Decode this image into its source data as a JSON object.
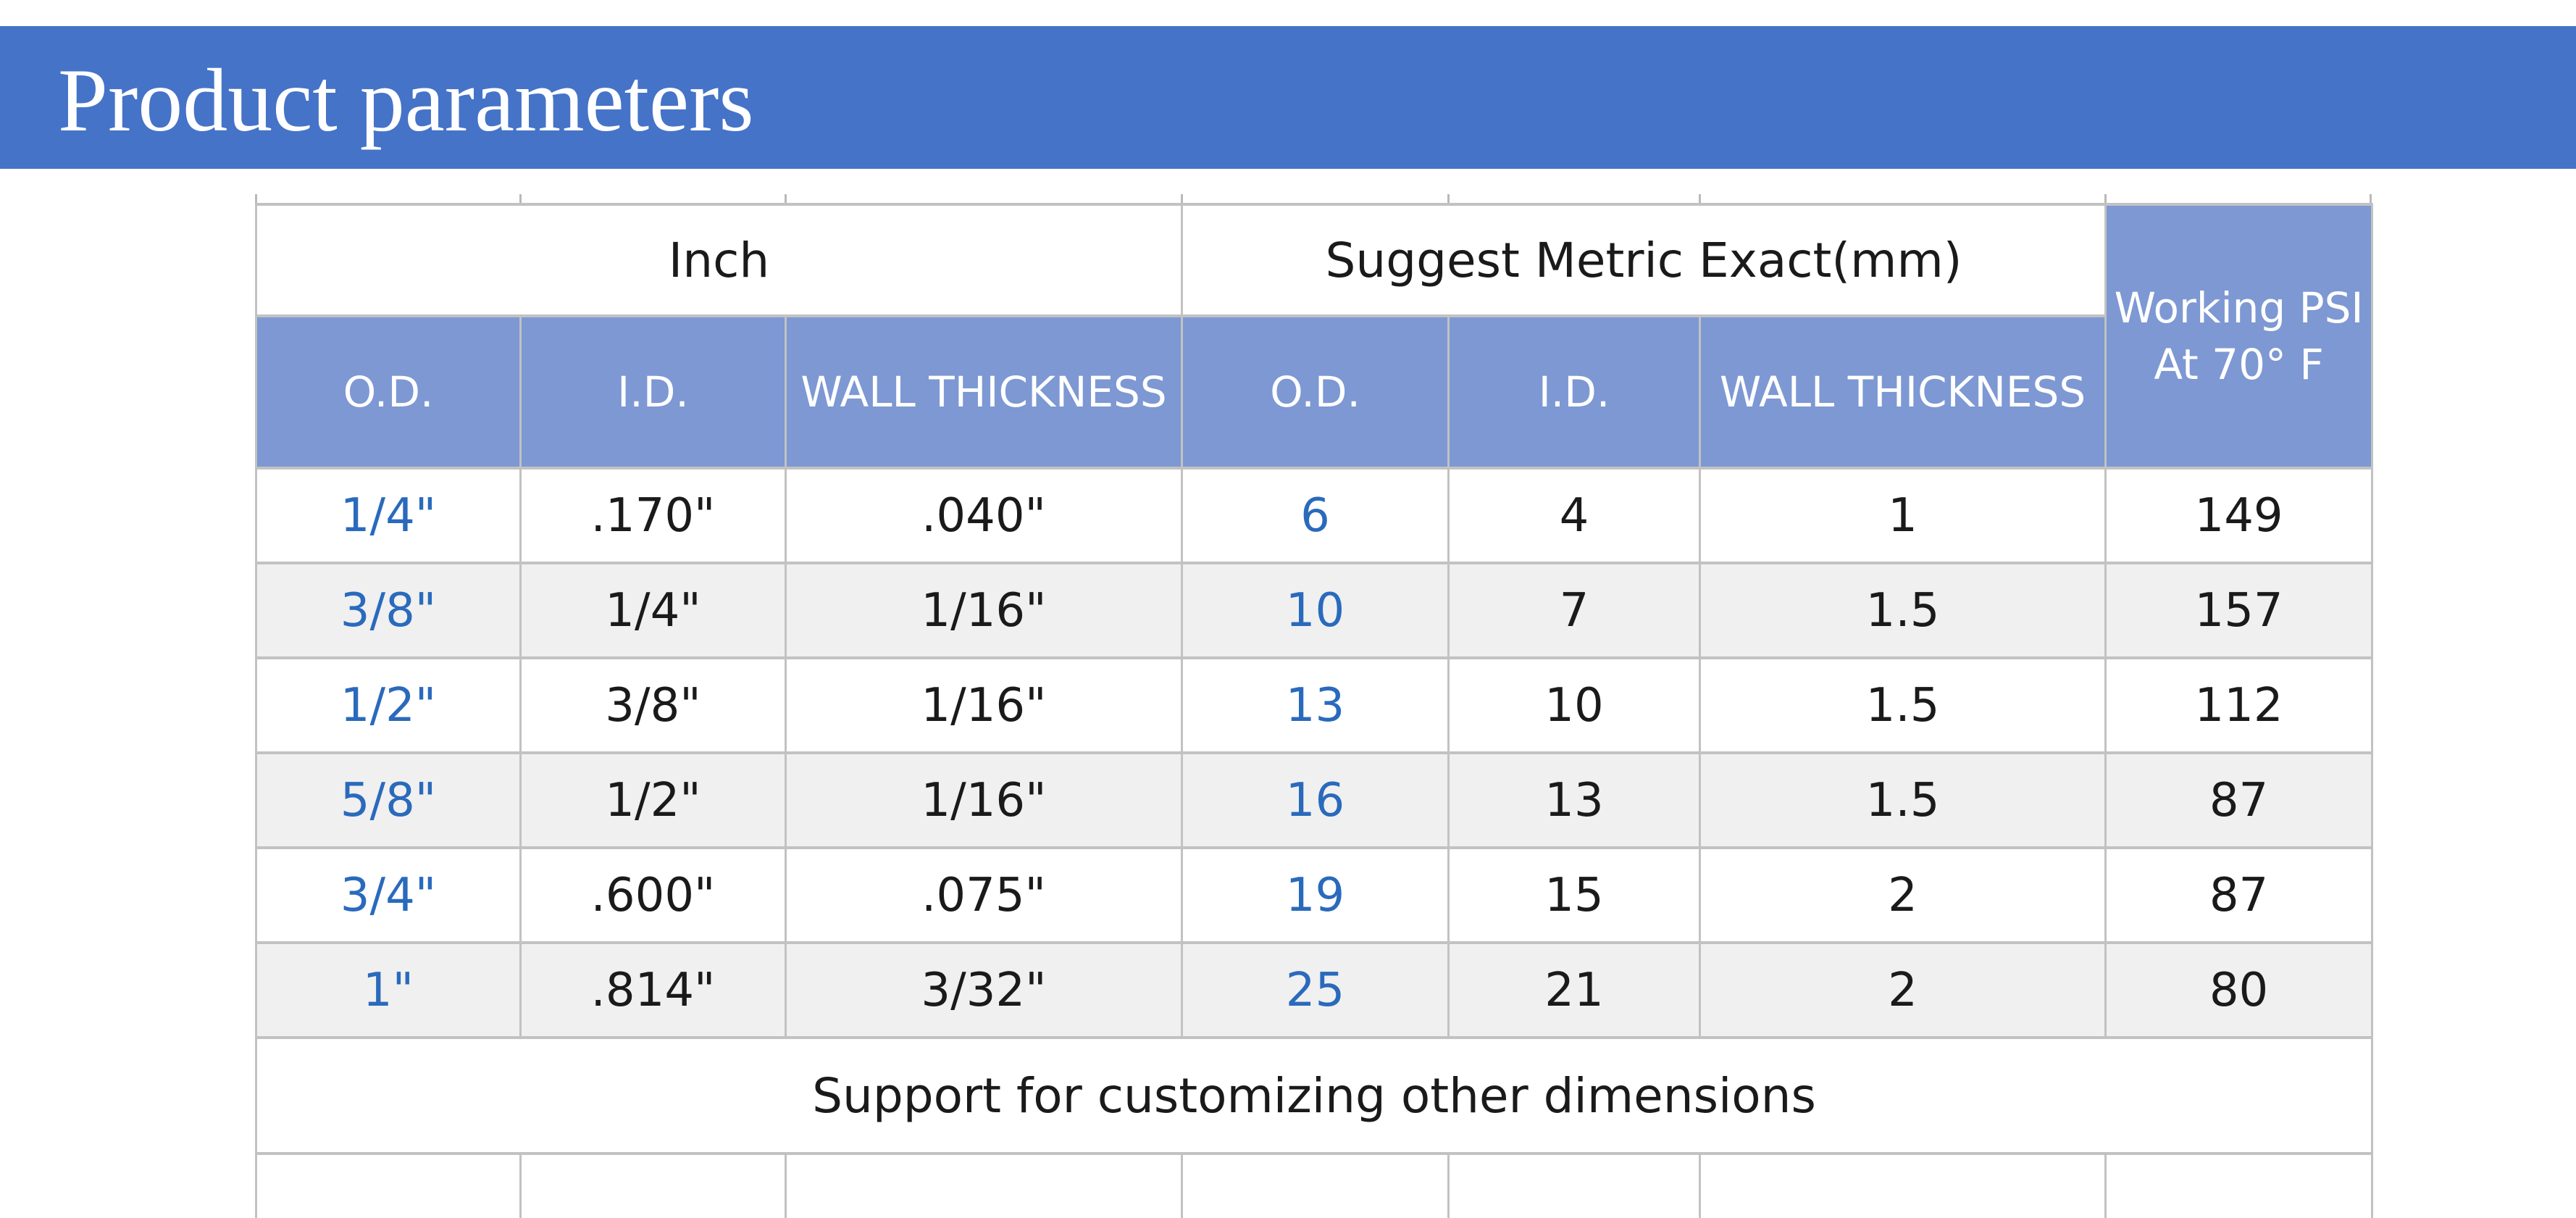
{
  "banner": {
    "title": "Product parameters",
    "bg_color": "#4573c8",
    "text_color": "#ffffff"
  },
  "table": {
    "group_headers": [
      {
        "label": "Inch",
        "span": 3
      },
      {
        "label": "Suggest Metric Exact(mm)",
        "span": 3
      }
    ],
    "psi_header": "Working PSI At 70° F",
    "column_headers": [
      "O.D.",
      "I.D.",
      "WALL THICKNESS",
      "O.D.",
      "I.D.",
      "WALL THICKNESS"
    ],
    "rows": [
      {
        "inch_od": "1/4\"",
        "inch_id": ".170\"",
        "inch_wall": ".040\"",
        "mm_od": "6",
        "mm_id": "4",
        "mm_wall": "1",
        "psi": "149"
      },
      {
        "inch_od": "3/8\"",
        "inch_id": "1/4\"",
        "inch_wall": "1/16\"",
        "mm_od": "10",
        "mm_id": "7",
        "mm_wall": "1.5",
        "psi": "157"
      },
      {
        "inch_od": "1/2\"",
        "inch_id": "3/8\"",
        "inch_wall": "1/16\"",
        "mm_od": "13",
        "mm_id": "10",
        "mm_wall": "1.5",
        "psi": "112"
      },
      {
        "inch_od": "5/8\"",
        "inch_id": "1/2\"",
        "inch_wall": "1/16\"",
        "mm_od": "16",
        "mm_id": "13",
        "mm_wall": "1.5",
        "psi": "87"
      },
      {
        "inch_od": "3/4\"",
        "inch_id": ".600\"",
        "inch_wall": ".075\"",
        "mm_od": "19",
        "mm_id": "15",
        "mm_wall": "2",
        "psi": "87"
      },
      {
        "inch_od": "1\"",
        "inch_id": ".814\"",
        "inch_wall": "3/32\"",
        "mm_od": "25",
        "mm_id": "21",
        "mm_wall": "2",
        "psi": "80"
      }
    ],
    "footer": "Support for customizing other dimensions",
    "colors": {
      "header_cell_bg": "#7d98d3",
      "link_text": "#2a6abc",
      "alt_row_bg": "#f0f0f0",
      "grid_border": "#c2c2c2"
    }
  }
}
